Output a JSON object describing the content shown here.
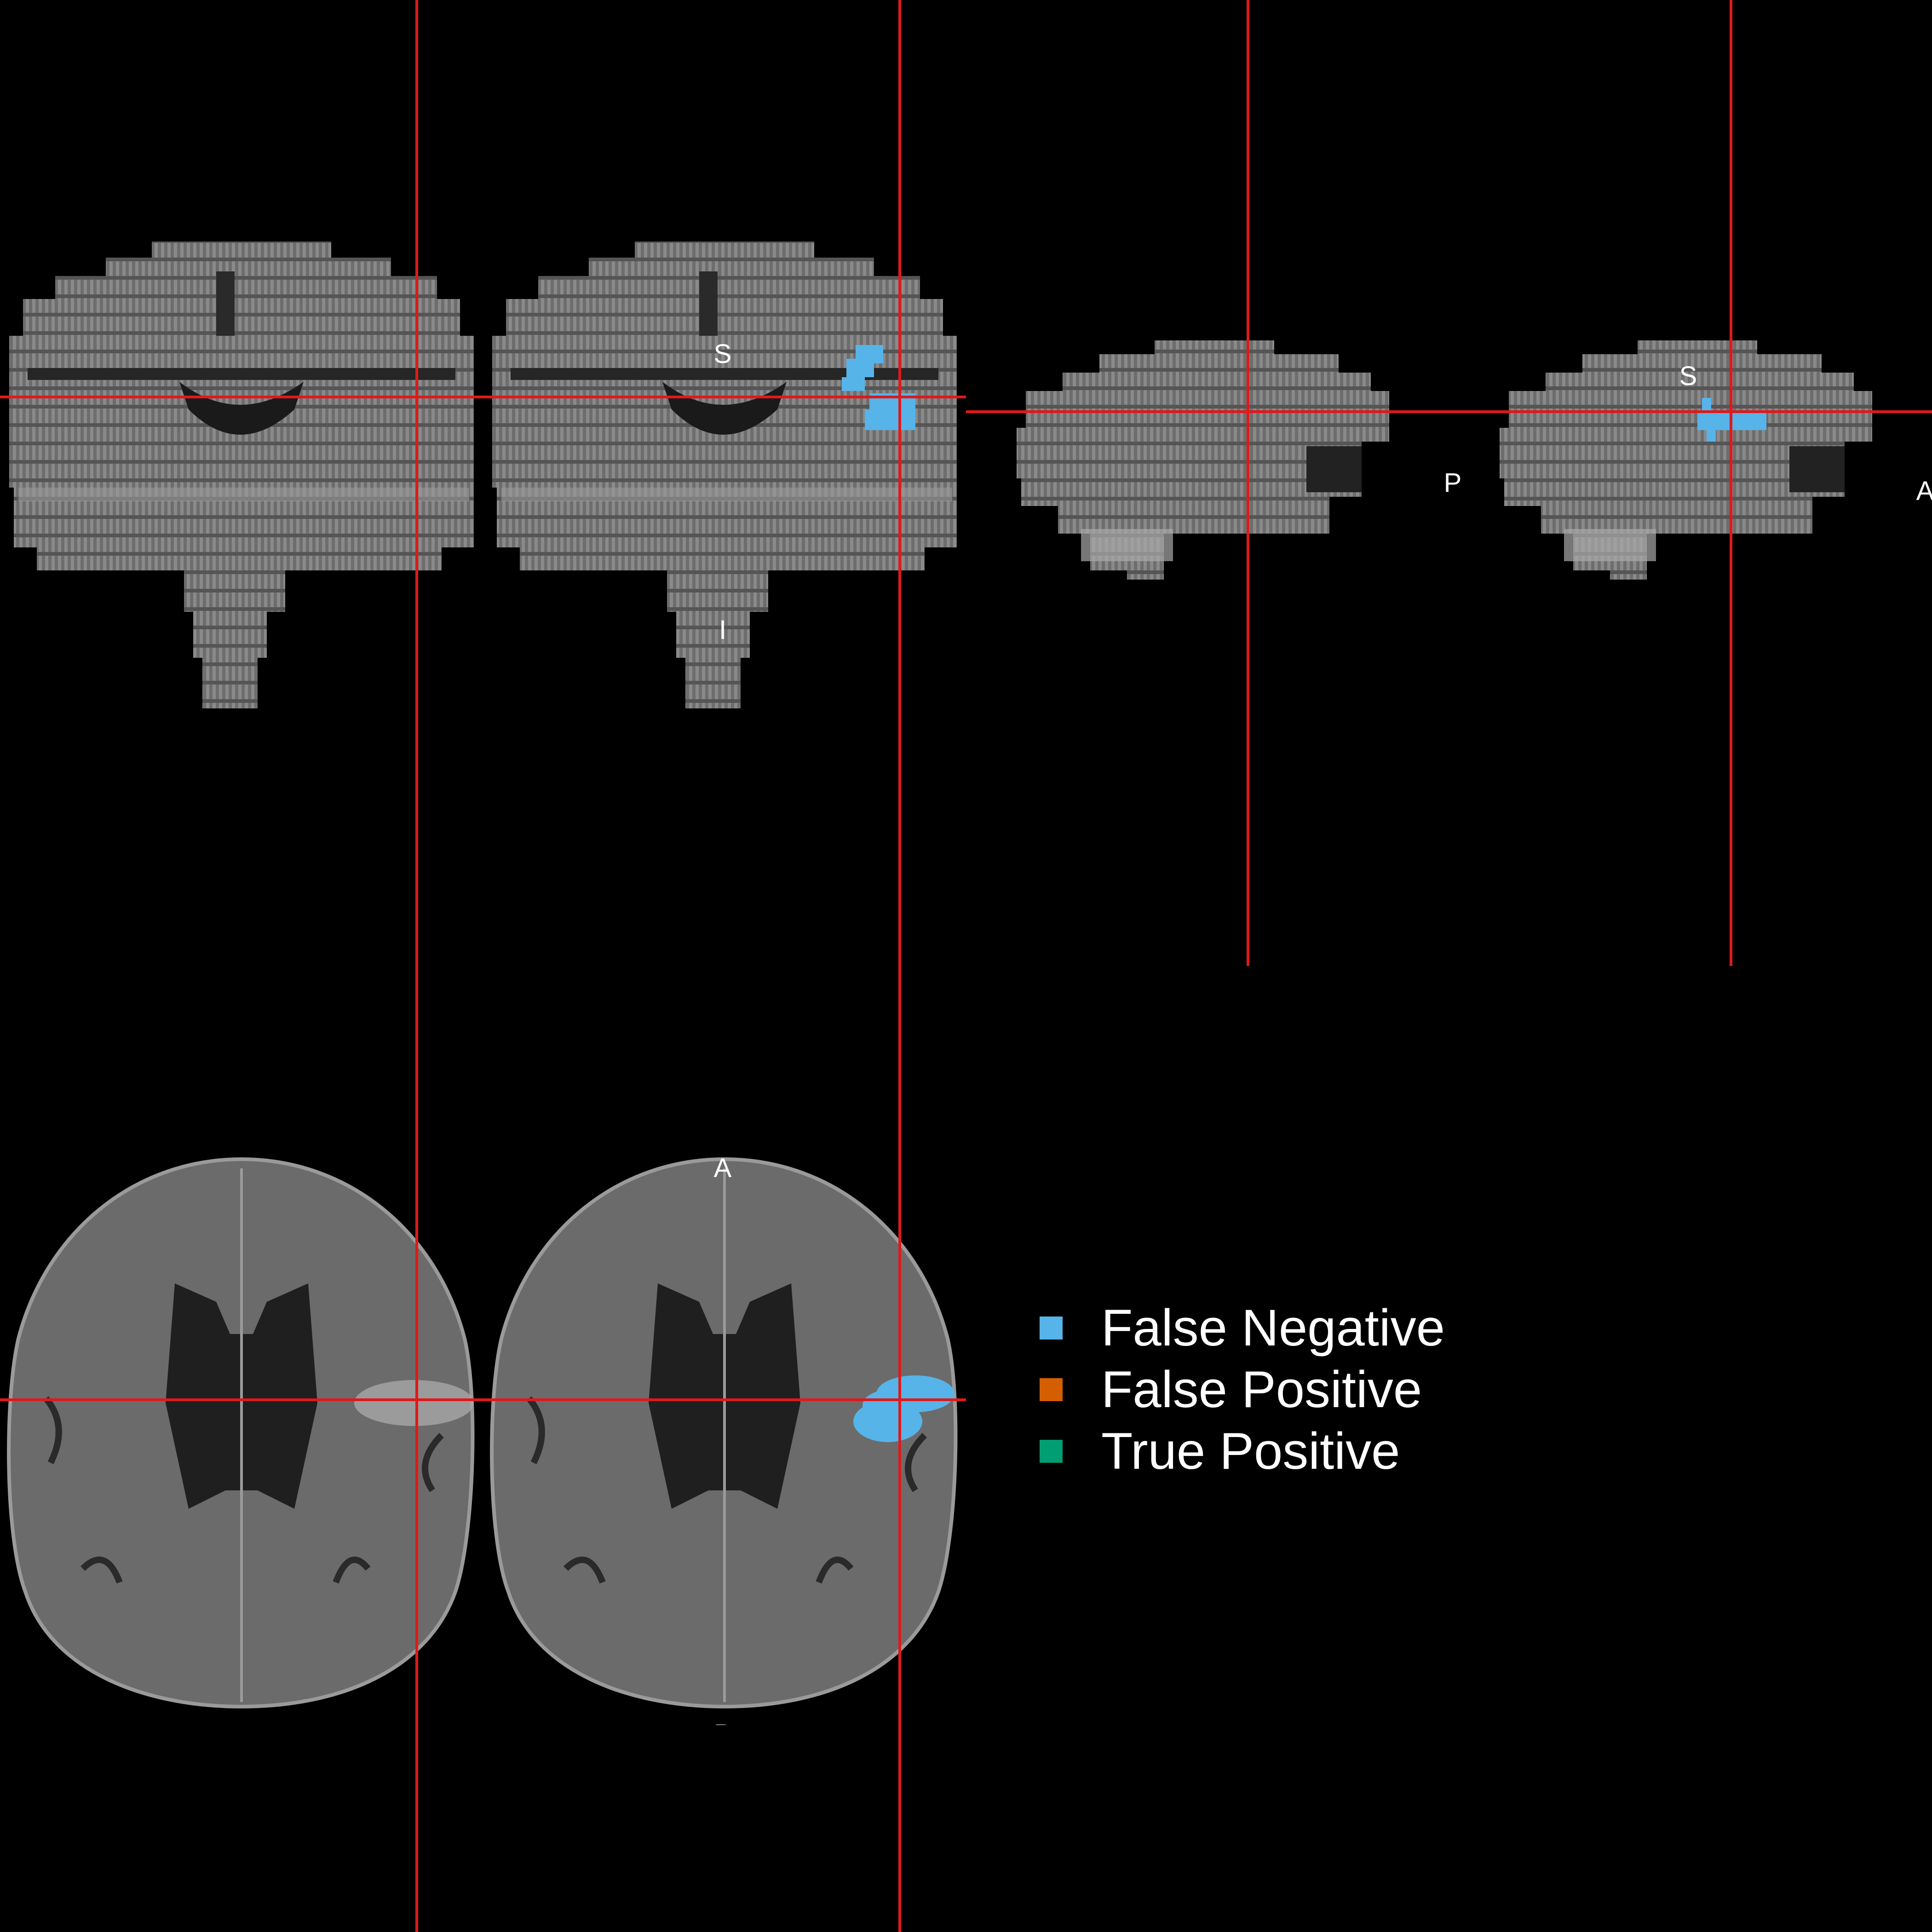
{
  "orientation_labels": {
    "coronal_superior": "S",
    "coronal_inferior": "I",
    "sagittal_superior": "S",
    "sagittal_posterior": "P",
    "sagittal_anterior": "A",
    "axial_anterior": "A",
    "axial_posterior": "P"
  },
  "legend": {
    "items": [
      {
        "label": "False Negative",
        "color": "#56b4e9"
      },
      {
        "label": "False Positive",
        "color": "#d55e00"
      },
      {
        "label": "True Positive",
        "color": "#009e73"
      }
    ]
  },
  "colors": {
    "crosshair": "#e0191b",
    "background": "#000000",
    "overlay_false_negative": "#56b4e9"
  }
}
